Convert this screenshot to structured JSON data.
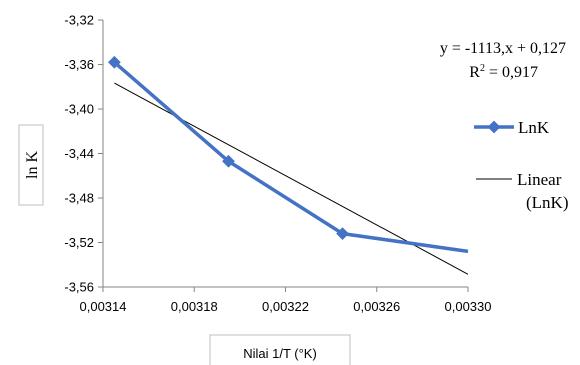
{
  "chart_data": {
    "type": "line",
    "ylabel": "ln K",
    "xlabel": "Nilai 1/T (°K)",
    "xlim": [
      0.00314,
      0.0033
    ],
    "ylim": [
      -3.56,
      -3.32
    ],
    "x_ticks": [
      "0,00314",
      "0,00318",
      "0,00322",
      "0,00326",
      "0,00330"
    ],
    "y_ticks": [
      "-3,32",
      "-3,36",
      "-3,40",
      "-3,44",
      "-3,48",
      "-3,52",
      "-3,56"
    ],
    "series": [
      {
        "name": "LnK",
        "color": "#4472C4",
        "marker": "diamond",
        "x": [
          0.003145,
          0.003195,
          0.003245,
          0.0033
        ],
        "y": [
          -3.358,
          -3.447,
          -3.512,
          -3.528
        ]
      }
    ],
    "trendline": {
      "name_line1": "Linear",
      "name_line2": "(LnK)",
      "type": "linear",
      "color": "#000000",
      "equation": "y = -1113,x + 0,127",
      "r2_prefix": "R",
      "r2_sup": "2",
      "r2_suffix": " = 0,917"
    },
    "legend_position": "right",
    "grid": false
  }
}
